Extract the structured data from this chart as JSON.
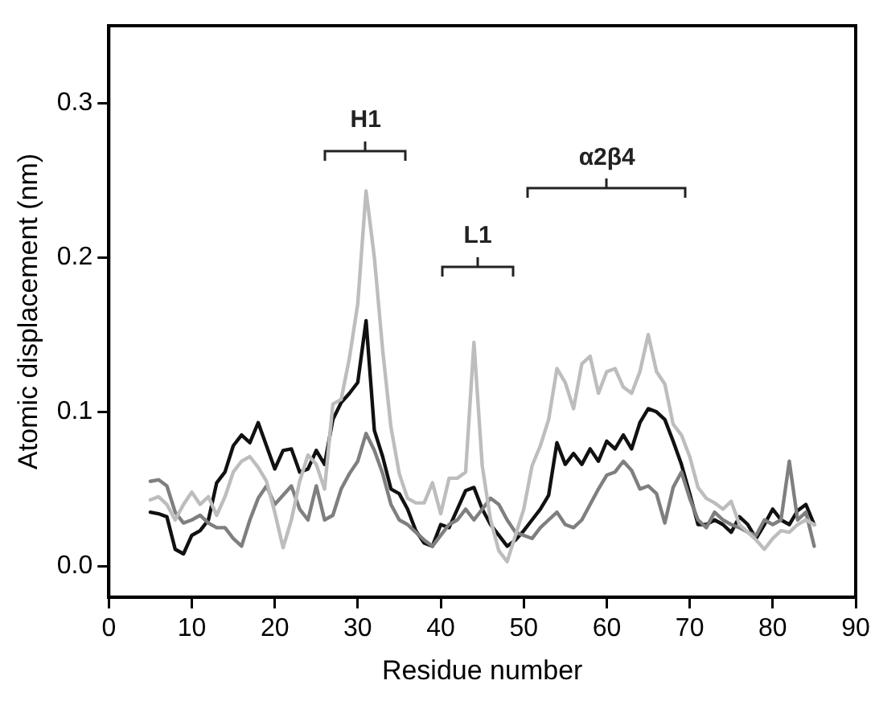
{
  "chart_data": {
    "type": "line",
    "xlabel": "Residue number",
    "ylabel": "Atomic displacement (nm)",
    "x": [
      5,
      6,
      7,
      8,
      9,
      10,
      11,
      12,
      13,
      14,
      15,
      16,
      17,
      18,
      19,
      20,
      21,
      22,
      23,
      24,
      25,
      26,
      27,
      28,
      29,
      30,
      31,
      32,
      33,
      34,
      35,
      36,
      37,
      38,
      39,
      40,
      41,
      42,
      43,
      44,
      45,
      46,
      47,
      48,
      49,
      50,
      51,
      52,
      53,
      54,
      55,
      56,
      57,
      58,
      59,
      60,
      61,
      62,
      63,
      64,
      65,
      66,
      67,
      68,
      69,
      70,
      71,
      72,
      73,
      74,
      75,
      76,
      77,
      78,
      79,
      80,
      81,
      82,
      83,
      84,
      85
    ],
    "series": [
      {
        "color": "#bdbdbd",
        "values": [
          0.043,
          0.045,
          0.04,
          0.03,
          0.04,
          0.048,
          0.04,
          0.045,
          0.033,
          0.045,
          0.061,
          0.068,
          0.071,
          0.064,
          0.055,
          0.035,
          0.012,
          0.03,
          0.055,
          0.072,
          0.066,
          0.05,
          0.105,
          0.108,
          0.135,
          0.17,
          0.243,
          0.2,
          0.14,
          0.09,
          0.06,
          0.044,
          0.041,
          0.041,
          0.054,
          0.034,
          0.057,
          0.057,
          0.061,
          0.145,
          0.065,
          0.03,
          0.01,
          0.003,
          0.02,
          0.037,
          0.065,
          0.078,
          0.095,
          0.128,
          0.119,
          0.102,
          0.131,
          0.136,
          0.112,
          0.126,
          0.128,
          0.116,
          0.112,
          0.126,
          0.15,
          0.126,
          0.118,
          0.092,
          0.085,
          0.071,
          0.051,
          0.044,
          0.041,
          0.037,
          0.042,
          0.027,
          0.022,
          0.017,
          0.011,
          0.018,
          0.023,
          0.022,
          0.027,
          0.03,
          0.027
        ]
      },
      {
        "color": "#7f7f7f",
        "values": [
          0.055,
          0.056,
          0.052,
          0.035,
          0.028,
          0.03,
          0.033,
          0.028,
          0.025,
          0.025,
          0.018,
          0.013,
          0.03,
          0.044,
          0.052,
          0.04,
          0.046,
          0.052,
          0.037,
          0.03,
          0.052,
          0.03,
          0.033,
          0.05,
          0.06,
          0.068,
          0.086,
          0.075,
          0.06,
          0.04,
          0.03,
          0.027,
          0.022,
          0.017,
          0.013,
          0.02,
          0.027,
          0.03,
          0.037,
          0.03,
          0.037,
          0.044,
          0.04,
          0.03,
          0.022,
          0.02,
          0.018,
          0.025,
          0.03,
          0.035,
          0.027,
          0.025,
          0.03,
          0.04,
          0.05,
          0.059,
          0.061,
          0.068,
          0.062,
          0.05,
          0.052,
          0.047,
          0.028,
          0.051,
          0.061,
          0.044,
          0.03,
          0.025,
          0.035,
          0.03,
          0.027,
          0.025,
          0.022,
          0.02,
          0.03,
          0.027,
          0.03,
          0.068,
          0.03,
          0.035,
          0.013
        ]
      },
      {
        "color": "#111111",
        "values": [
          0.035,
          0.034,
          0.032,
          0.011,
          0.008,
          0.02,
          0.023,
          0.03,
          0.054,
          0.061,
          0.078,
          0.085,
          0.08,
          0.093,
          0.078,
          0.063,
          0.075,
          0.076,
          0.061,
          0.063,
          0.075,
          0.066,
          0.095,
          0.106,
          0.112,
          0.119,
          0.159,
          0.088,
          0.071,
          0.05,
          0.047,
          0.037,
          0.023,
          0.015,
          0.013,
          0.027,
          0.025,
          0.037,
          0.049,
          0.051,
          0.037,
          0.027,
          0.02,
          0.013,
          0.017,
          0.023,
          0.03,
          0.037,
          0.046,
          0.08,
          0.066,
          0.073,
          0.066,
          0.076,
          0.068,
          0.081,
          0.076,
          0.085,
          0.076,
          0.093,
          0.102,
          0.1,
          0.095,
          0.081,
          0.066,
          0.047,
          0.027,
          0.027,
          0.03,
          0.027,
          0.022,
          0.032,
          0.027,
          0.018,
          0.027,
          0.037,
          0.03,
          0.027,
          0.036,
          0.04,
          0.027
        ]
      }
    ],
    "xlim": [
      0,
      90
    ],
    "xticks": [
      0,
      10,
      20,
      30,
      40,
      50,
      60,
      70,
      80,
      90
    ],
    "ylim": [
      -0.02,
      0.35
    ],
    "yticks": [
      {
        "value": 0,
        "label": "0.0"
      },
      0.1,
      0.2,
      0.3
    ],
    "annotations": [
      "H1",
      "L1",
      "α2β4"
    ],
    "grid": false,
    "legend": false,
    "marker": "none",
    "line_style": "solid"
  }
}
